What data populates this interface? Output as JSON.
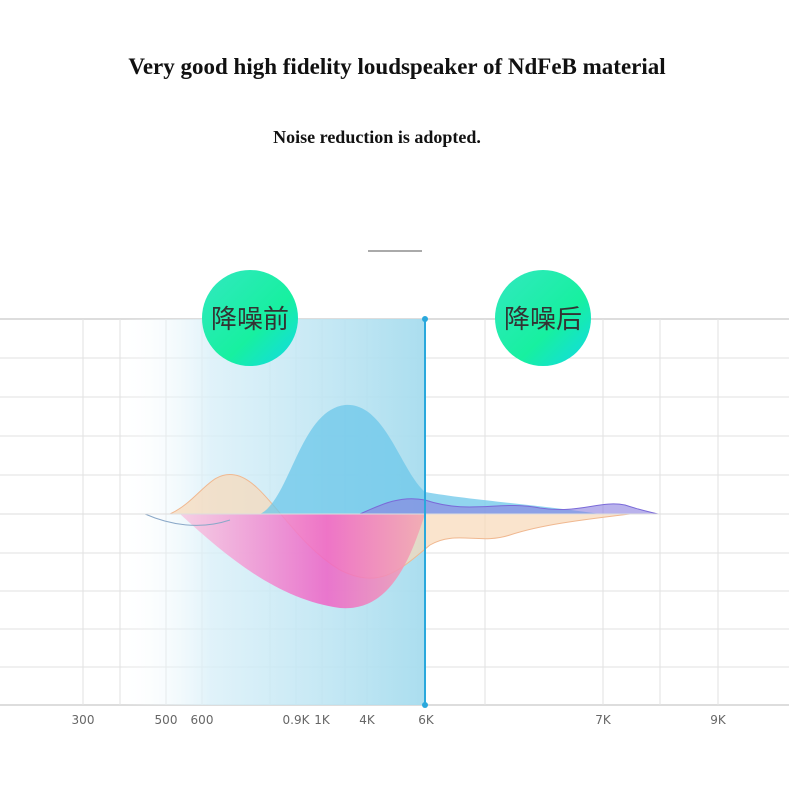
{
  "header": {
    "title": "Very good high fidelity loudspeaker of NdFeB material",
    "subtitle": "Noise reduction is adopted."
  },
  "badges": {
    "before": "降噪前",
    "after": "降噪后"
  },
  "axis": {
    "labels": [
      "300",
      "500",
      "600",
      "0.9K",
      "1K",
      "4K",
      "6K",
      "7K",
      "9K"
    ]
  }
}
